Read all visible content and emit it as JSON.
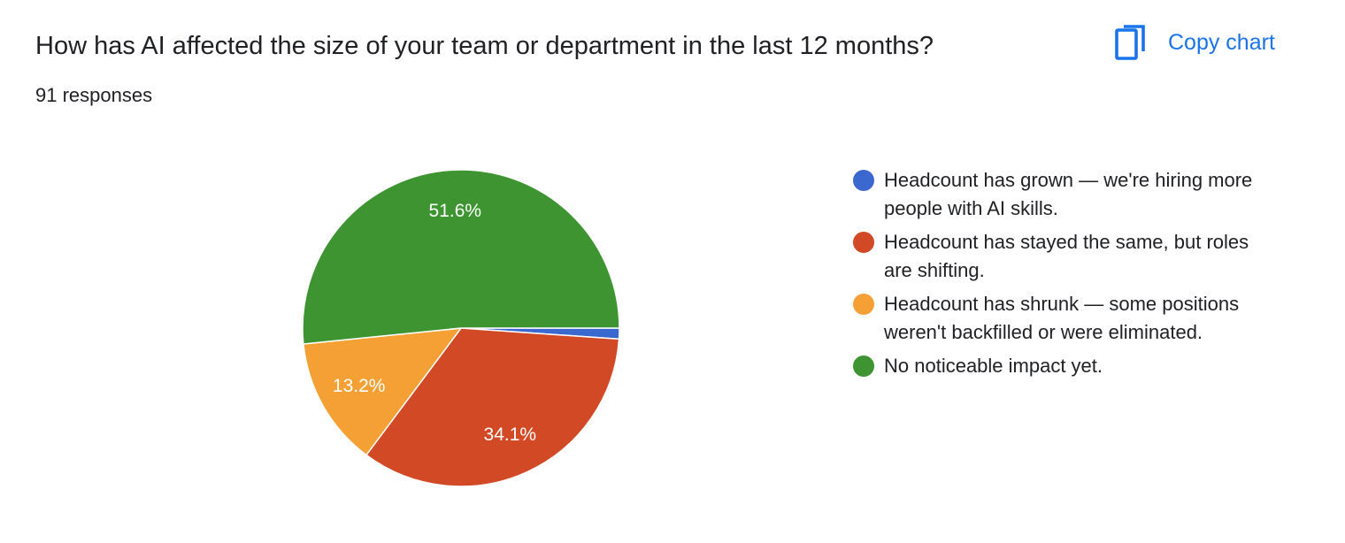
{
  "header": {
    "title": "How has AI affected the size of your team or department in the last 12 months?",
    "responses": "91 responses",
    "copy_label": "Copy chart",
    "copy_icon": "copy-icon",
    "accent_color": "#1a73e8"
  },
  "chart_data": {
    "type": "pie",
    "title": "How has AI affected the size of your team or department in the last 12 months?",
    "total_responses": 91,
    "legend_position": "right",
    "categories": [
      "Headcount has grown — we're hiring more people with AI skills.",
      "Headcount has stayed the same, but roles are shifting.",
      "Headcount has shrunk — some positions weren't backfilled or were eliminated.",
      "No noticeable impact yet."
    ],
    "values": [
      1.1,
      34.1,
      13.2,
      51.6
    ],
    "counts": [
      1,
      31,
      12,
      47
    ],
    "data_labels": [
      "",
      "34.1%",
      "13.2%",
      "51.6%"
    ],
    "colors": [
      "#3b68cf",
      "#d14a25",
      "#f5a034",
      "#3d9430"
    ]
  }
}
